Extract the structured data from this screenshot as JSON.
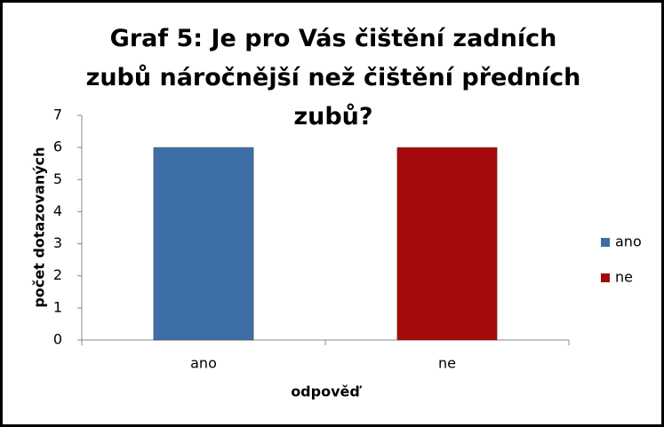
{
  "chart_data": {
    "type": "bar",
    "title": "Graf 5: Je pro Vás čištění zadních zubů náročnější než čištění předních zubů?",
    "x_label": "odpověď",
    "y_label": "počet dotazovaných",
    "categories": [
      "ano",
      "ne"
    ],
    "values": [
      6,
      6
    ],
    "colors": [
      "#3e6ea8",
      "#a50a0a"
    ],
    "ylim": [
      0,
      7
    ],
    "yticks": [
      0,
      1,
      2,
      3,
      4,
      5,
      6,
      7
    ],
    "legend": "right"
  }
}
